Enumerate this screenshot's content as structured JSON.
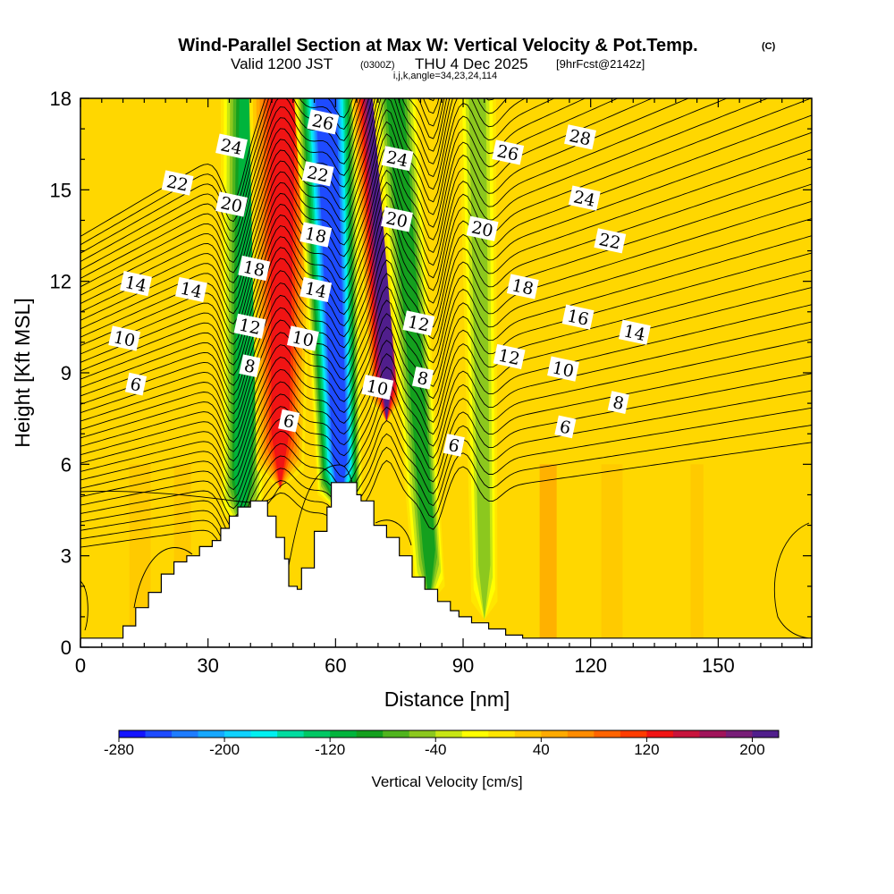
{
  "chart_data": {
    "type": "heatmap",
    "title": "Wind-Parallel Section at Max W: Vertical Velocity & Pot.Temp.",
    "title_tag": "(C)",
    "subtitle_pre": "Valid 1200 JST",
    "subtitle_utc": "(0300Z)",
    "subtitle_date": "THU 4 Dec 2025",
    "subtitle_fcst": "[9hrFcst@2142z]",
    "subtitle2": "i,j,k,angle=34,23,24,114",
    "xlabel": "Distance [nm]",
    "ylabel": "Height [Kft MSL]",
    "xlim": [
      0,
      172
    ],
    "ylim": [
      0,
      18
    ],
    "x_ticks": [
      0,
      30,
      60,
      90,
      120,
      150
    ],
    "y_ticks": [
      0,
      3,
      6,
      9,
      12,
      15,
      18
    ],
    "colorbar": {
      "label": "Vertical Velocity [cm/s]",
      "min": -280,
      "max": 220,
      "step": 20,
      "ticks": [
        -280,
        -200,
        -120,
        -40,
        40,
        120,
        200
      ],
      "colors": [
        "#1414ff",
        "#1e4bff",
        "#1e7cff",
        "#16a8ff",
        "#10d2ff",
        "#00f0f0",
        "#00dca0",
        "#00c864",
        "#00b43c",
        "#14a01e",
        "#50b41e",
        "#8cc81e",
        "#c8e614",
        "#ffff00",
        "#ffe600",
        "#ffc800",
        "#ffaa00",
        "#ff8c00",
        "#ff6400",
        "#ff3c00",
        "#f01414",
        "#c8143c",
        "#a0145a",
        "#781e78",
        "#501e8c"
      ]
    },
    "updrafts_cm_s": [
      {
        "name": "updraft-west",
        "x_nm": 47,
        "peak": 120
      },
      {
        "name": "updraft-east",
        "x_nm": 72,
        "peak": 200
      }
    ],
    "downdrafts_cm_s": [
      {
        "name": "downdraft-core",
        "x_nm": 61,
        "peak": -260
      },
      {
        "name": "downdraft-west",
        "x_nm": 38,
        "peak": -110
      },
      {
        "name": "downdraft-mid",
        "x_nm": 82,
        "peak": -100
      },
      {
        "name": "downdraft-east",
        "x_nm": 95,
        "peak": -60
      }
    ],
    "terrain_kft": [
      [
        0,
        0.3
      ],
      [
        4,
        0.3
      ],
      [
        10,
        0.7
      ],
      [
        13,
        1.3
      ],
      [
        16,
        1.8
      ],
      [
        19,
        2.4
      ],
      [
        22,
        2.8
      ],
      [
        25,
        3.0
      ],
      [
        28,
        3.3
      ],
      [
        31,
        3.5
      ],
      [
        33,
        3.9
      ],
      [
        35,
        4.3
      ],
      [
        37,
        4.6
      ],
      [
        40,
        4.8
      ],
      [
        43,
        4.8
      ],
      [
        44,
        4.3
      ],
      [
        46,
        3.6
      ],
      [
        48,
        2.9
      ],
      [
        49,
        2.0
      ],
      [
        51,
        1.9
      ],
      [
        52,
        2.6
      ],
      [
        55,
        3.8
      ],
      [
        58,
        4.6
      ],
      [
        59,
        5.4
      ],
      [
        62,
        5.4
      ],
      [
        65,
        5.0
      ],
      [
        66,
        4.8
      ],
      [
        69,
        4.0
      ],
      [
        72,
        3.6
      ],
      [
        75,
        3.0
      ],
      [
        78,
        2.3
      ],
      [
        81,
        1.9
      ],
      [
        84,
        1.5
      ],
      [
        87,
        1.2
      ],
      [
        89,
        1.0
      ],
      [
        92,
        0.8
      ],
      [
        96,
        0.6
      ],
      [
        100,
        0.4
      ],
      [
        104,
        0.3
      ],
      [
        172,
        0.3
      ]
    ],
    "theta_contour_labels": [
      {
        "v": "26",
        "x": 57,
        "y": 17.2
      },
      {
        "v": "24",
        "x": 35.5,
        "y": 16.4
      },
      {
        "v": "22",
        "x": 22.8,
        "y": 15.2
      },
      {
        "v": "20",
        "x": 35.5,
        "y": 14.5
      },
      {
        "v": "22",
        "x": 55.8,
        "y": 15.5
      },
      {
        "v": "18",
        "x": 55.3,
        "y": 13.5
      },
      {
        "v": "18",
        "x": 40.8,
        "y": 12.4
      },
      {
        "v": "14",
        "x": 13,
        "y": 11.9
      },
      {
        "v": "14",
        "x": 26,
        "y": 11.7
      },
      {
        "v": "14",
        "x": 55.3,
        "y": 11.7
      },
      {
        "v": "12",
        "x": 39.8,
        "y": 10.5
      },
      {
        "v": "10",
        "x": 10.3,
        "y": 10.1
      },
      {
        "v": "10",
        "x": 52.3,
        "y": 10.1
      },
      {
        "v": "8",
        "x": 39.8,
        "y": 9.2
      },
      {
        "v": "6",
        "x": 13,
        "y": 8.6
      },
      {
        "v": "6",
        "x": 49,
        "y": 7.4
      },
      {
        "v": "24",
        "x": 74.5,
        "y": 16.0
      },
      {
        "v": "20",
        "x": 74.4,
        "y": 14.0
      },
      {
        "v": "12",
        "x": 79.5,
        "y": 10.6
      },
      {
        "v": "10",
        "x": 69.8,
        "y": 8.5
      },
      {
        "v": "8",
        "x": 80.5,
        "y": 8.8
      },
      {
        "v": "6",
        "x": 87.8,
        "y": 6.6
      },
      {
        "v": "26",
        "x": 100.5,
        "y": 16.2
      },
      {
        "v": "28",
        "x": 117.5,
        "y": 16.7
      },
      {
        "v": "24",
        "x": 118.5,
        "y": 14.7
      },
      {
        "v": "20",
        "x": 94.5,
        "y": 13.7
      },
      {
        "v": "22",
        "x": 124.5,
        "y": 13.3
      },
      {
        "v": "18",
        "x": 104,
        "y": 11.8
      },
      {
        "v": "16",
        "x": 117,
        "y": 10.8
      },
      {
        "v": "14",
        "x": 130.3,
        "y": 10.3
      },
      {
        "v": "12",
        "x": 100.8,
        "y": 9.5
      },
      {
        "v": "10",
        "x": 113.5,
        "y": 9.1
      },
      {
        "v": "8",
        "x": 126.5,
        "y": 8.0
      },
      {
        "v": "6",
        "x": 114,
        "y": 7.2
      }
    ]
  }
}
